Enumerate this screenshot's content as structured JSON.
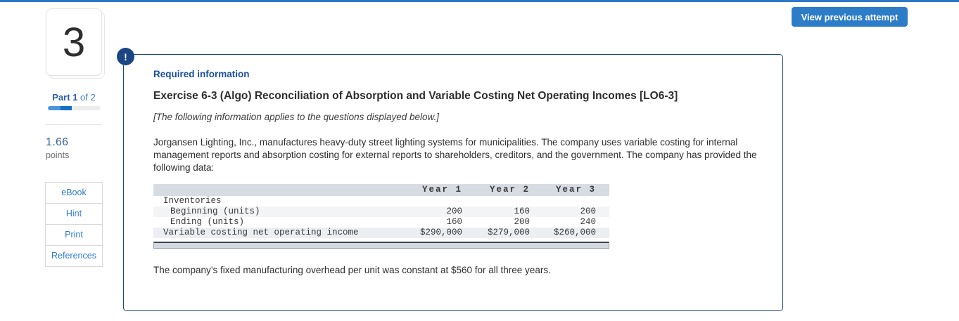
{
  "colors": {
    "accent_blue": "#2d7cc8",
    "navy_badge": "#1c4585",
    "panel_border": "#1d4380",
    "table_header_bg": "#d7dbe2",
    "table_row_alt_bg": "#eceef2",
    "progress_fill_light": "#4b94dd",
    "progress_fill_dark": "#1470c5"
  },
  "header": {
    "view_previous_attempt_label": "View previous attempt"
  },
  "sidebar": {
    "question_number": "3",
    "part_bold": "Part 1",
    "part_rest": " of 2",
    "points_value": "1.66",
    "points_label": "points",
    "progress_percent": 45,
    "buttons": [
      {
        "label": "eBook"
      },
      {
        "label": "Hint"
      },
      {
        "label": "Print"
      },
      {
        "label": "References"
      }
    ]
  },
  "panel": {
    "alert_icon_glyph": "!",
    "required_info_label": "Required information",
    "exercise_title": "Exercise 6-3 (Algo) Reconciliation of Absorption and Variable Costing Net Operating Incomes [LO6-3]",
    "applies_note": "[The following information applies to the questions displayed below.]",
    "intro_paragraph": "Jorgansen Lighting, Inc., manufactures heavy-duty street lighting systems for municipalities. The company uses variable costing for internal management reports and absorption costing for external reports to shareholders, creditors, and the government. The company has provided the following data:",
    "closing_paragraph": "The company’s fixed manufacturing overhead per unit was constant at $560 for all three years."
  },
  "chart_data": {
    "type": "table",
    "title": "",
    "columns": [
      "",
      "Year 1",
      "Year 2",
      "Year 3"
    ],
    "rows": [
      [
        "Inventories",
        "",
        "",
        ""
      ],
      [
        "Beginning (units)",
        "200",
        "160",
        "200"
      ],
      [
        "Ending (units)",
        "160",
        "200",
        "240"
      ],
      [
        "Variable costing net operating income",
        "$290,000",
        "$279,000",
        "$260,000"
      ]
    ]
  },
  "table": {
    "headers": [
      "Year 1",
      "Year 2",
      "Year 3"
    ],
    "rows": [
      {
        "label": "Inventories",
        "y1": "",
        "y2": "",
        "y3": ""
      },
      {
        "label": "Beginning (units)",
        "y1": "200",
        "y2": "160",
        "y3": "200"
      },
      {
        "label": "Ending (units)",
        "y1": "160",
        "y2": "200",
        "y3": "240"
      },
      {
        "label": "Variable costing net operating income",
        "y1": "$290,000",
        "y2": "$279,000",
        "y3": "$260,000"
      }
    ]
  }
}
